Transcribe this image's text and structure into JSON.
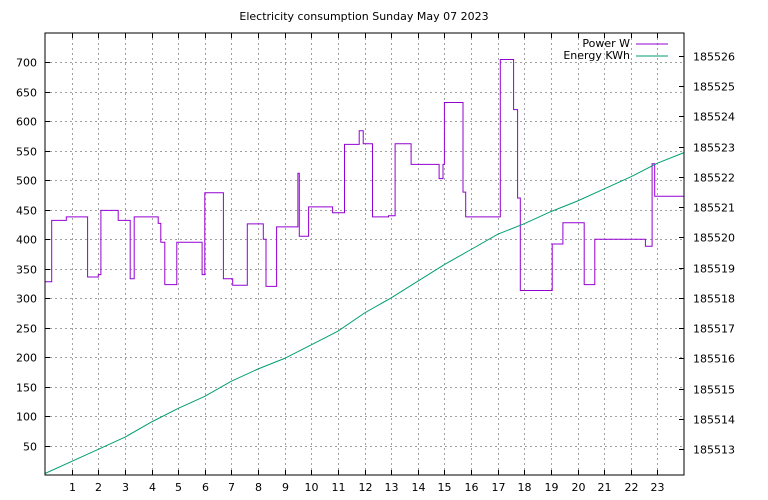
{
  "chart_data": {
    "type": "line",
    "title": "Electricity consumption Sunday May 07 2023",
    "x_ticks": [
      1,
      2,
      3,
      4,
      5,
      6,
      7,
      8,
      9,
      10,
      11,
      12,
      13,
      14,
      15,
      16,
      17,
      18,
      19,
      20,
      21,
      22,
      23
    ],
    "xlim": [
      0,
      24
    ],
    "y_left_ticks": [
      50,
      100,
      150,
      200,
      250,
      300,
      350,
      400,
      450,
      500,
      550,
      600,
      650,
      700
    ],
    "y_left_lim": [
      0,
      750
    ],
    "y_right_ticks": [
      185513,
      185514,
      185515,
      185516,
      185517,
      185518,
      185519,
      185520,
      185521,
      185522,
      185523,
      185524,
      185525,
      185526
    ],
    "y_right_lim": [
      185512.15,
      185526.75
    ],
    "grid": true,
    "legend_position": "top-right",
    "series": [
      {
        "name": "Power W",
        "axis": "left",
        "color": "#9400d3",
        "step": true,
        "x": [
          0,
          0.25,
          0.8,
          1.6,
          2.0,
          2.1,
          2.75,
          3.2,
          3.35,
          4.1,
          4.25,
          4.35,
          4.5,
          4.95,
          5.9,
          6.0,
          6.7,
          7.05,
          7.5,
          7.6,
          8.2,
          8.3,
          8.7,
          9.45,
          9.5,
          9.55,
          9.6,
          9.9,
          10.2,
          10.8,
          11.25,
          11.8,
          11.95,
          12.3,
          12.9,
          13.15,
          13.75,
          14.0,
          14.8,
          14.95,
          15.0,
          15.5,
          15.7,
          15.8,
          17.0,
          17.1,
          17.5,
          17.6,
          17.75,
          17.85,
          18.75,
          19.05,
          19.45,
          19.95,
          20.25,
          20.5,
          20.65,
          21.8,
          22.55,
          22.8,
          22.9,
          24.0
        ],
        "y": [
          328,
          432,
          438,
          336,
          340,
          449,
          432,
          333,
          438,
          438,
          427,
          395,
          323,
          395,
          340,
          479,
          333,
          322,
          322,
          426,
          400,
          320,
          421,
          421,
          512,
          405,
          405,
          455,
          455,
          445,
          561,
          584,
          562,
          438,
          440,
          562,
          527,
          527,
          503,
          527,
          632,
          632,
          480,
          438,
          438,
          705,
          705,
          620,
          470,
          313,
          313,
          392,
          428,
          428,
          323,
          323,
          400,
          400,
          388,
          528,
          473,
          412
        ]
      },
      {
        "name": "Energy KWh",
        "axis": "right",
        "color": "#009e73",
        "step": false,
        "x": [
          0,
          1,
          2,
          3,
          4,
          5,
          6,
          7,
          8,
          9,
          10,
          11,
          12,
          13,
          14,
          15,
          16,
          17,
          18,
          19,
          20,
          21,
          22,
          23,
          24
        ],
        "y": [
          185512.2,
          185512.6,
          185513.0,
          185513.4,
          185513.9,
          185514.35,
          185514.75,
          185515.25,
          185515.65,
          185516.0,
          185516.45,
          185516.9,
          185517.5,
          185518.0,
          185518.55,
          185519.1,
          185519.6,
          185520.1,
          185520.45,
          185520.85,
          185521.2,
          185521.6,
          185522.0,
          185522.45,
          185522.8
        ]
      }
    ]
  }
}
